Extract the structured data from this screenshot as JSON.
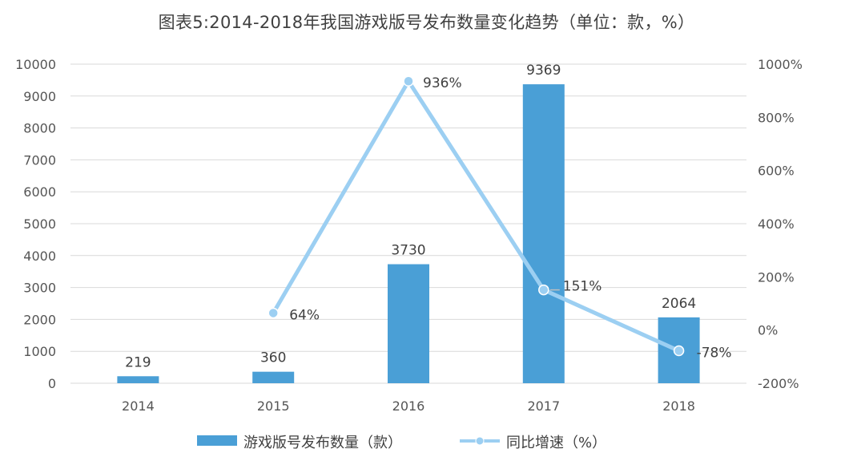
{
  "chart_data": {
    "type": "bar+line",
    "title": "图表5:2014-2018年我国游戏版号发布数量变化趋势（单位：款，%）",
    "categories": [
      "2014",
      "2015",
      "2016",
      "2017",
      "2018"
    ],
    "series": [
      {
        "name": "游戏版号发布数量（款）",
        "type": "bar",
        "axis": "left",
        "color": "#4a9fd6",
        "values": [
          219,
          360,
          3730,
          9369,
          2064
        ],
        "labels": [
          "219",
          "360",
          "3730",
          "9369",
          "2064"
        ]
      },
      {
        "name": "同比增速（%）",
        "type": "line",
        "axis": "right",
        "color": "#9ccff2",
        "values": [
          null,
          64,
          936,
          151,
          -78
        ],
        "labels": [
          "",
          "64%",
          "936%",
          "151%",
          "-78%"
        ]
      }
    ],
    "y_left": {
      "lim": [
        0,
        10000
      ],
      "ticks": [
        "0",
        "1000",
        "2000",
        "3000",
        "4000",
        "5000",
        "6000",
        "7000",
        "8000",
        "9000",
        "10000"
      ]
    },
    "y_right": {
      "lim": [
        -200,
        1000
      ],
      "ticks": [
        "-200%",
        "0%",
        "200%",
        "400%",
        "600%",
        "800%",
        "1000%"
      ]
    },
    "grid": true,
    "legend_position": "bottom"
  }
}
